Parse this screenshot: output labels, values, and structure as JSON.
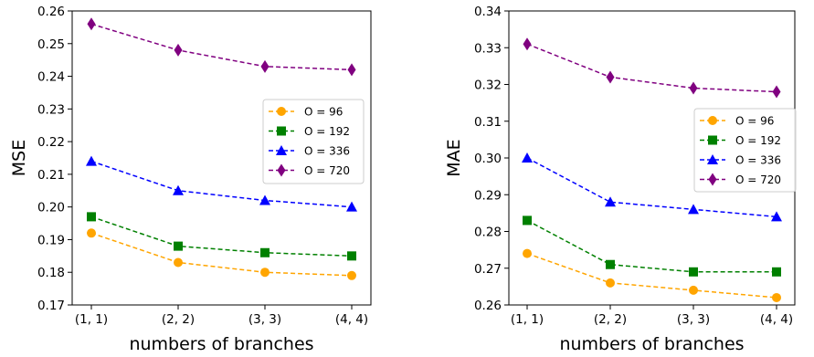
{
  "chart_data": [
    {
      "type": "line",
      "xlabel": "numbers of branches",
      "ylabel": "MSE",
      "categories": [
        "(1, 1)",
        "(2, 2)",
        "(3, 3)",
        "(4, 4)"
      ],
      "ylim": [
        0.17,
        0.26
      ],
      "yticks": [
        "0.17",
        "0.18",
        "0.19",
        "0.20",
        "0.21",
        "0.22",
        "0.23",
        "0.24",
        "0.25",
        "0.26"
      ],
      "legend_position": "center-right",
      "series": [
        {
          "name": "O = 96",
          "color": "#ffa500",
          "marker": "circle",
          "values": [
            0.192,
            0.183,
            0.18,
            0.179
          ]
        },
        {
          "name": "O = 192",
          "color": "#008000",
          "marker": "square",
          "values": [
            0.197,
            0.188,
            0.186,
            0.185
          ]
        },
        {
          "name": "O = 336",
          "color": "#0000ff",
          "marker": "triangle",
          "values": [
            0.214,
            0.205,
            0.202,
            0.2
          ]
        },
        {
          "name": "O = 720",
          "color": "#800080",
          "marker": "diamond",
          "values": [
            0.256,
            0.248,
            0.243,
            0.242
          ]
        }
      ]
    },
    {
      "type": "line",
      "xlabel": "numbers of branches",
      "ylabel": "MAE",
      "categories": [
        "(1, 1)",
        "(2, 2)",
        "(3, 3)",
        "(4, 4)"
      ],
      "ylim": [
        0.26,
        0.34
      ],
      "yticks": [
        "0.26",
        "0.27",
        "0.28",
        "0.29",
        "0.30",
        "0.31",
        "0.32",
        "0.33",
        "0.34"
      ],
      "legend_position": "center-right",
      "series": [
        {
          "name": "O = 96",
          "color": "#ffa500",
          "marker": "circle",
          "values": [
            0.274,
            0.266,
            0.264,
            0.262
          ]
        },
        {
          "name": "O = 192",
          "color": "#008000",
          "marker": "square",
          "values": [
            0.283,
            0.271,
            0.269,
            0.269
          ]
        },
        {
          "name": "O = 336",
          "color": "#0000ff",
          "marker": "triangle",
          "values": [
            0.3,
            0.288,
            0.286,
            0.284
          ]
        },
        {
          "name": "O = 720",
          "color": "#800080",
          "marker": "diamond",
          "values": [
            0.331,
            0.322,
            0.319,
            0.318
          ]
        }
      ]
    }
  ]
}
